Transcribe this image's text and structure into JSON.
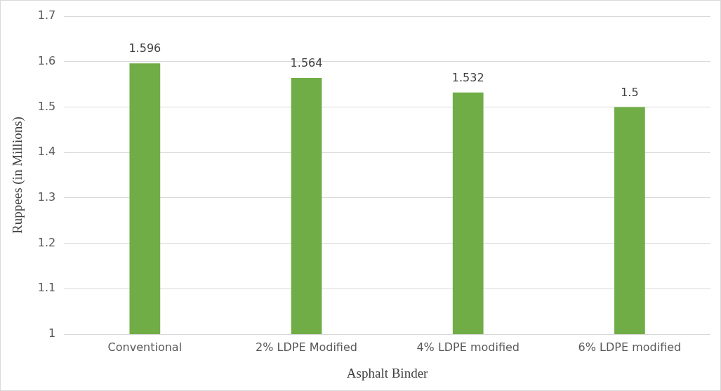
{
  "chart_data": {
    "type": "bar",
    "xlabel": "Asphalt Binder",
    "ylabel": "Ruppees (in Millions)",
    "categories": [
      "Conventional",
      "2% LDPE Modified",
      "4% LDPE modified",
      "6% LDPE modified"
    ],
    "values": [
      1.596,
      1.564,
      1.532,
      1.5
    ],
    "color": "#70ad47",
    "ylim": [
      1,
      1.7
    ],
    "yticks": [
      1,
      1.1,
      1.2,
      1.3,
      1.4,
      1.5,
      1.6,
      1.7
    ],
    "grid": "y",
    "data_labels": true,
    "legend": false
  }
}
